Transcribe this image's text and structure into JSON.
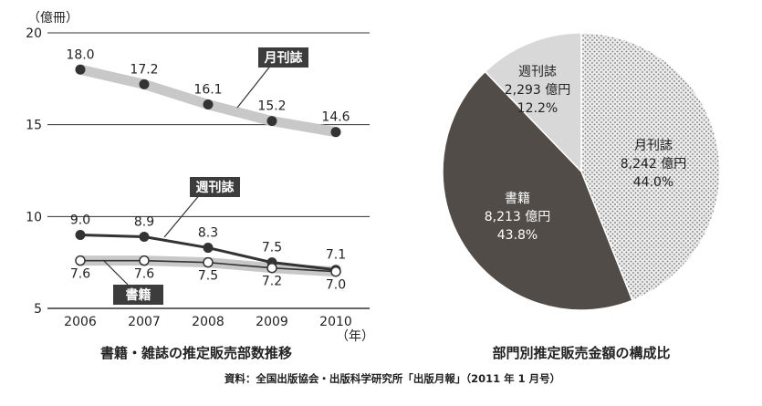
{
  "chart_data": [
    {
      "type": "line",
      "title": "書籍・雑誌の推定販売部数推移",
      "ylabel": "（億冊）",
      "x_unit": "（年）",
      "x": [
        2006,
        2007,
        2008,
        2009,
        2010
      ],
      "x_tick_labels": [
        "2006",
        "2007",
        "2008",
        "2009",
        "2010"
      ],
      "y_ticks": [
        "20",
        "15",
        "10",
        "5"
      ],
      "ylim": [
        5,
        20
      ],
      "grid": true,
      "series": [
        {
          "name": "月刊誌",
          "values": [
            18.0,
            17.2,
            16.1,
            15.2,
            14.6
          ],
          "labels": [
            "18.0",
            "17.2",
            "16.1",
            "15.2",
            "14.6"
          ],
          "marker": "filled",
          "color": "#333333"
        },
        {
          "name": "週刊誌",
          "values": [
            9.0,
            8.9,
            8.3,
            7.5,
            7.1
          ],
          "labels": [
            "9.0",
            "8.9",
            "8.3",
            "7.5",
            "7.1"
          ],
          "marker": "filled",
          "color": "#333333"
        },
        {
          "name": "書籍",
          "values": [
            7.6,
            7.6,
            7.5,
            7.2,
            7.0
          ],
          "labels": [
            "7.6",
            "7.6",
            "7.5",
            "7.2",
            "7.0"
          ],
          "marker": "open",
          "color": "#333333"
        }
      ]
    },
    {
      "type": "pie",
      "title": "部門別推定販売金額の構成比",
      "slices": [
        {
          "name": "月刊誌",
          "amount": "8,242 億円",
          "percent_label": "44.0%",
          "value": 44.0,
          "color": "#e0e0e0",
          "pattern": "dots"
        },
        {
          "name": "書籍",
          "amount": "8,213 億円",
          "percent_label": "43.8%",
          "value": 43.8,
          "color": "#524c48"
        },
        {
          "name": "週刊誌",
          "amount": "2,293 億円",
          "percent_label": "12.2%",
          "value": 12.2,
          "color": "#d8d8d8"
        }
      ]
    }
  ],
  "source_note": "資料：全国出版協会・出版科学研究所「出版月報」（2011 年 1 月号）",
  "colors": {
    "background_trend": "#c8c8c8",
    "line": "#333333",
    "label_box": "#3c3c3c",
    "grid": "#333333"
  }
}
